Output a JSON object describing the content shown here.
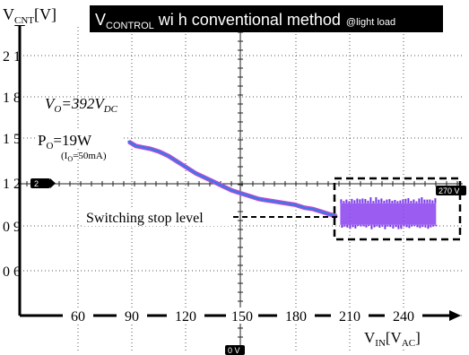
{
  "title": {
    "prefix": "V",
    "sub": "CONTROL",
    "text": " wi h conventional method",
    "note": "@light load"
  },
  "y_axis_label": {
    "main": "V",
    "sub": "CNT",
    "unit": "[V]"
  },
  "x_axis_label": {
    "main": "V",
    "sub": "IN",
    "unit_open": "[V",
    "unit_sub": "AC",
    "unit_close": "]"
  },
  "annotations": {
    "vo": {
      "v1": "V",
      "s1": "O",
      "eq": "=392",
      "v2": "V",
      "s2": "DC"
    },
    "po": {
      "p": "P",
      "s": "O",
      "rest": "=19W"
    },
    "io": {
      "open": "(I",
      "s": "O",
      "rest": "=50mA)"
    },
    "stop_label": "Switching stop level",
    "marker_ch": "2",
    "marker_trig": "270 V",
    "marker_zero": "0 V"
  },
  "colors": {
    "trace": "#3a78e6",
    "trace_outline": "#c24ad4",
    "noise": "#8a3ff0",
    "grid": "#555555",
    "title_bg": "#000000",
    "title_fg": "#ffffff"
  },
  "chart_data": {
    "type": "line",
    "x_ticks": [
      "60",
      "90",
      "120",
      "150",
      "180",
      "210",
      "240"
    ],
    "y_ticks": [
      "2 1",
      "1 8",
      "1 5",
      "1 2",
      "0 9",
      "0 6"
    ],
    "xlim": [
      45,
      270
    ],
    "ylim": [
      3,
      24
    ],
    "stop_level": 9.8,
    "series": [
      {
        "x": [
          88,
          92,
          96,
          100,
          105,
          110,
          115,
          120,
          125,
          130,
          135,
          140,
          145,
          150,
          155,
          160,
          165,
          170,
          175,
          180,
          185,
          190,
          195,
          200,
          203
        ],
        "y": [
          15.0,
          14.7,
          14.6,
          14.5,
          14.3,
          14.0,
          13.6,
          13.2,
          12.8,
          12.5,
          12.2,
          11.9,
          11.6,
          11.4,
          11.2,
          11.0,
          10.9,
          10.8,
          10.7,
          10.6,
          10.4,
          10.3,
          10.1,
          9.9,
          9.8
        ]
      },
      {
        "type": "band",
        "x": [
          205,
          258
        ],
        "y_low": 9.2,
        "y_high": 10.7
      }
    ]
  }
}
